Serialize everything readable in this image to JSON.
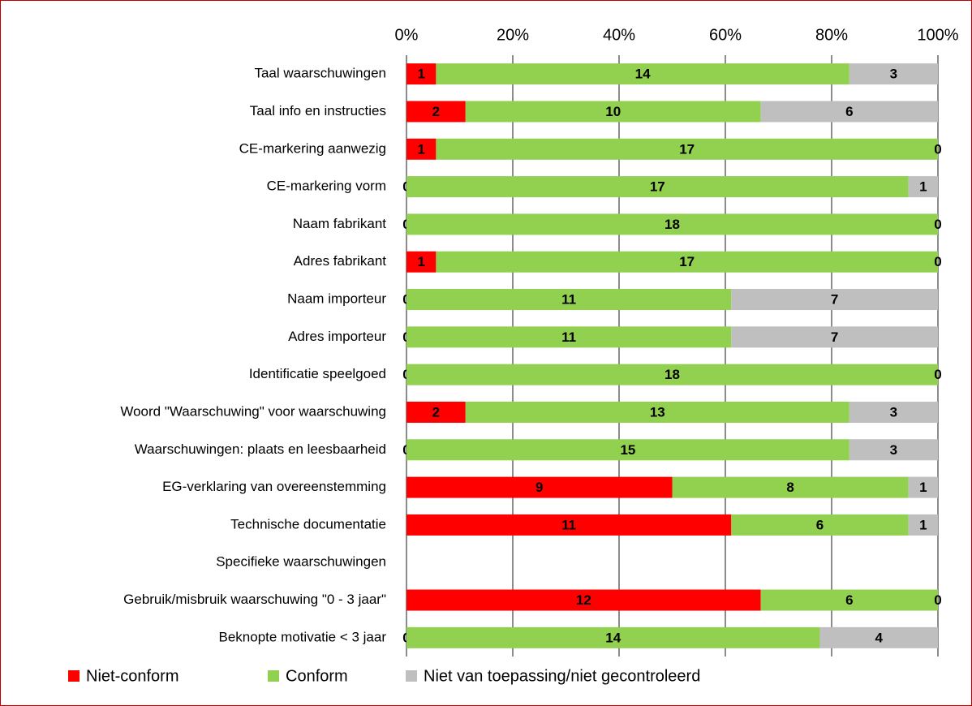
{
  "chart_data": {
    "type": "bar",
    "orientation": "horizontal",
    "stacking": "percent",
    "categories": [
      "Taal waarschuwingen",
      "Taal info en instructies",
      "CE-markering aanwezig",
      "CE-markering vorm",
      "Naam fabrikant",
      "Adres fabrikant",
      "Naam importeur",
      "Adres importeur",
      "Identificatie speelgoed",
      "Woord \"Waarschuwing\" voor waarschuwing",
      "Waarschuwingen: plaats en leesbaarheid",
      "EG-verklaring van overeenstemming",
      "Technische documentatie",
      "Specifieke waarschuwingen",
      "Gebruik/misbruik waarschuwing \"0 - 3 jaar\"",
      "Beknopte motivatie < 3 jaar"
    ],
    "series": [
      {
        "name": "Niet-conform",
        "color": "#ff0000",
        "values": [
          1,
          2,
          1,
          0,
          0,
          1,
          0,
          0,
          0,
          2,
          0,
          9,
          11,
          null,
          12,
          0
        ]
      },
      {
        "name": "Conform",
        "color": "#92d050",
        "values": [
          14,
          10,
          17,
          17,
          18,
          17,
          11,
          11,
          18,
          13,
          15,
          8,
          6,
          null,
          6,
          14
        ]
      },
      {
        "name": "Niet van toepassing/niet gecontroleerd",
        "color": "#bfbfbf",
        "values": [
          3,
          6,
          0,
          1,
          0,
          0,
          7,
          7,
          0,
          3,
          3,
          1,
          1,
          null,
          0,
          4
        ]
      }
    ],
    "xlim": [
      0,
      100
    ],
    "xticks": [
      {
        "value": 0,
        "label": "0%"
      },
      {
        "value": 20,
        "label": "20%"
      },
      {
        "value": 40,
        "label": "40%"
      },
      {
        "value": 60,
        "label": "60%"
      },
      {
        "value": 80,
        "label": "80%"
      },
      {
        "value": 100,
        "label": "100%"
      }
    ],
    "grid": true,
    "legend": "bottom"
  }
}
